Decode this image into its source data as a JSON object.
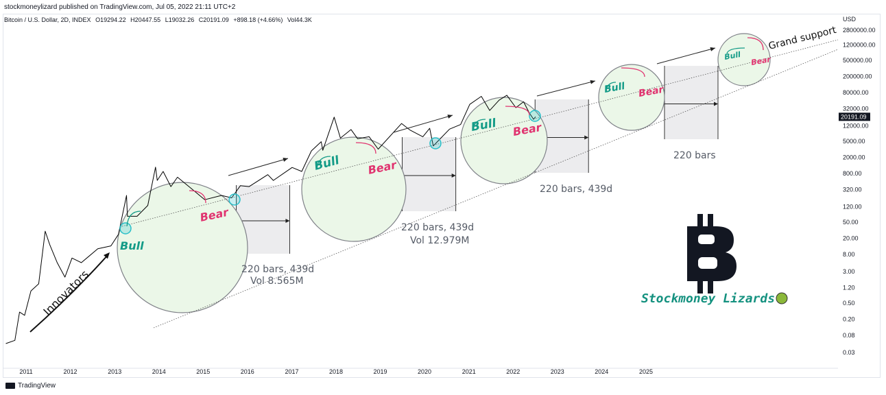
{
  "header": {
    "published": "stockmoneylizard published on TradingView.com, Jul 05, 2022 21:11 UTC+2",
    "symbol": "Bitcoin / U.S. Dollar, 2D, INDEX",
    "open": "O19294.22",
    "high": "H20447.55",
    "low": "L19032.26",
    "close": "C20191.09",
    "change": "+898.18 (+4.66%)",
    "volume": "Vol44.3K"
  },
  "footer": {
    "brand": "TradingView"
  },
  "chart_data": {
    "type": "line",
    "series": [
      {
        "values": [
          {
            "x": "2010-07-18",
            "y": 0.05
          },
          {
            "x": "2010-10-01",
            "y": 0.06
          },
          {
            "x": "2010-11-08",
            "y": 0.3
          },
          {
            "x": "2010-12-20",
            "y": 0.25
          },
          {
            "x": "2011-02-10",
            "y": 1.0
          },
          {
            "x": "2011-04-15",
            "y": 1.5
          },
          {
            "x": "2011-06-08",
            "y": 30
          },
          {
            "x": "2011-07-15",
            "y": 14
          },
          {
            "x": "2011-09-15",
            "y": 5
          },
          {
            "x": "2011-11-18",
            "y": 2.2
          },
          {
            "x": "2012-01-15",
            "y": 6.5
          },
          {
            "x": "2012-04-01",
            "y": 5
          },
          {
            "x": "2012-08-15",
            "y": 11
          },
          {
            "x": "2012-12-01",
            "y": 13
          },
          {
            "x": "2013-02-01",
            "y": 25
          },
          {
            "x": "2013-04-09",
            "y": 230
          },
          {
            "x": "2013-04-16",
            "y": 70
          },
          {
            "x": "2013-07-05",
            "y": 70
          },
          {
            "x": "2013-10-01",
            "y": 130
          },
          {
            "x": "2013-12-04",
            "y": 1150
          },
          {
            "x": "2013-12-18",
            "y": 540
          },
          {
            "x": "2014-02-05",
            "y": 900
          },
          {
            "x": "2014-04-10",
            "y": 380
          },
          {
            "x": "2014-06-03",
            "y": 650
          },
          {
            "x": "2014-10-01",
            "y": 330
          },
          {
            "x": "2015-01-14",
            "y": 180
          },
          {
            "x": "2015-06-01",
            "y": 230
          },
          {
            "x": "2015-08-24",
            "y": 200
          },
          {
            "x": "2015-11-04",
            "y": 400
          },
          {
            "x": "2016-01-15",
            "y": 380
          },
          {
            "x": "2016-06-17",
            "y": 750
          },
          {
            "x": "2016-08-02",
            "y": 540
          },
          {
            "x": "2017-01-04",
            "y": 1130
          },
          {
            "x": "2017-03-24",
            "y": 900
          },
          {
            "x": "2017-06-12",
            "y": 2900
          },
          {
            "x": "2017-09-01",
            "y": 4900
          },
          {
            "x": "2017-09-14",
            "y": 3000
          },
          {
            "x": "2017-12-17",
            "y": 19800
          },
          {
            "x": "2018-02-06",
            "y": 6000
          },
          {
            "x": "2018-05-05",
            "y": 9800
          },
          {
            "x": "2018-06-28",
            "y": 5800
          },
          {
            "x": "2018-10-01",
            "y": 6500
          },
          {
            "x": "2018-12-15",
            "y": 3200
          },
          {
            "x": "2019-06-26",
            "y": 13800
          },
          {
            "x": "2019-09-01",
            "y": 9600
          },
          {
            "x": "2019-12-18",
            "y": 6500
          },
          {
            "x": "2020-02-13",
            "y": 10500
          },
          {
            "x": "2020-03-13",
            "y": 3850
          },
          {
            "x": "2020-07-25",
            "y": 10000
          },
          {
            "x": "2020-10-25",
            "y": 13000
          },
          {
            "x": "2021-01-08",
            "y": 41000
          },
          {
            "x": "2021-04-14",
            "y": 64800
          },
          {
            "x": "2021-06-22",
            "y": 29000
          },
          {
            "x": "2021-09-07",
            "y": 52000
          },
          {
            "x": "2021-11-10",
            "y": 69000
          },
          {
            "x": "2022-01-24",
            "y": 34000
          },
          {
            "x": "2022-03-28",
            "y": 47500
          },
          {
            "x": "2022-05-12",
            "y": 26000
          },
          {
            "x": "2022-06-18",
            "y": 17600
          },
          {
            "x": "2022-07-05",
            "y": 20191
          }
        ]
      }
    ],
    "y_axis": {
      "unit": "USD",
      "scale": "log",
      "range": [
        0.01,
        4000000
      ],
      "ticks": [
        "2800000.00",
        "1200000.00",
        "500000.00",
        "200000.00",
        "80000.00",
        "32000.00",
        "12000.00",
        "5000.00",
        "2000.00",
        "800.00",
        "320.00",
        "120.00",
        "50.00",
        "20.00",
        "8.00",
        "3.00",
        "1.20",
        "0.50",
        "0.20",
        "0.08",
        "0.03"
      ],
      "last_price_label": "20191.09"
    },
    "x_axis": {
      "range": [
        "2010-06-01",
        "2025-08-01"
      ],
      "ticks": [
        "2011",
        "2012",
        "2013",
        "2014",
        "2015",
        "2016",
        "2017",
        "2018",
        "2019",
        "2020",
        "2021",
        "2022",
        "2023",
        "2024",
        "2025"
      ]
    },
    "annotations": {
      "innovators": "Innovators",
      "bull_labels": [
        "Bull",
        "Bull",
        "Bull",
        "Bull",
        "Bull"
      ],
      "bear_labels": [
        "Bear",
        "Bear",
        "Bear",
        "Bear",
        "Bear"
      ],
      "notes": [
        {
          "text": "220 bars, 439d",
          "sub": "Vol 8.565M"
        },
        {
          "text": "220 bars, 439d",
          "sub": "Vol 12.979M"
        },
        {
          "text": "220 bars, 439d"
        },
        {
          "text": "220 bars"
        }
      ],
      "grand_support": "Grand support",
      "brand": "Stockmoney Lizards"
    },
    "colors": {
      "price": "#000000",
      "bull": "#139b87",
      "bear": "#e0336f",
      "circle_fill": "#ebf7e8",
      "circle_stroke": "#7f8188",
      "range_box": "#ececee",
      "marker": "#27bfc8",
      "brand": "#14917f",
      "last_price_bg": "#131722"
    },
    "grid": false
  }
}
